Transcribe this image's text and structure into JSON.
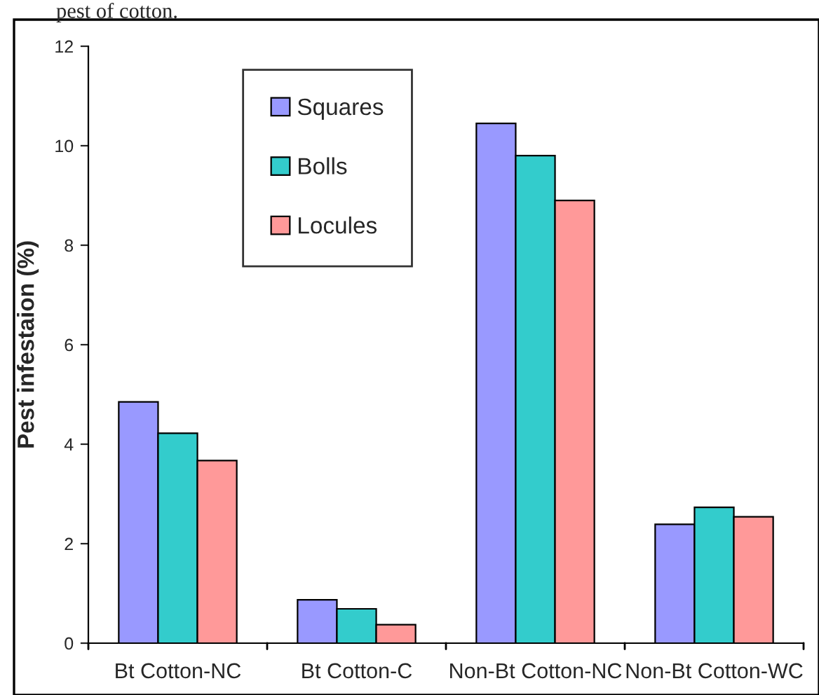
{
  "chart_data": {
    "type": "bar",
    "ylabel": "Pest infestaion (%)",
    "annotations": [
      "pest of cotton."
    ],
    "categories": [
      "Bt Cotton-NC",
      "Bt Cotton-C",
      "Non-Bt Cotton-NC",
      "Non-Bt Cotton-WC"
    ],
    "series": [
      {
        "name": "Squares",
        "color": "#9999ff",
        "values": [
          4.85,
          0.87,
          10.45,
          2.39
        ]
      },
      {
        "name": "Bolls",
        "color": "#33cccc",
        "values": [
          4.22,
          0.69,
          9.8,
          2.73
        ]
      },
      {
        "name": "Locules",
        "color": "#ff9999",
        "values": [
          3.67,
          0.37,
          8.9,
          2.54
        ]
      }
    ],
    "ylim": [
      0,
      12
    ],
    "yticks": [
      0,
      2,
      4,
      6,
      8,
      10,
      12
    ],
    "grid": false,
    "legend": "top left"
  }
}
